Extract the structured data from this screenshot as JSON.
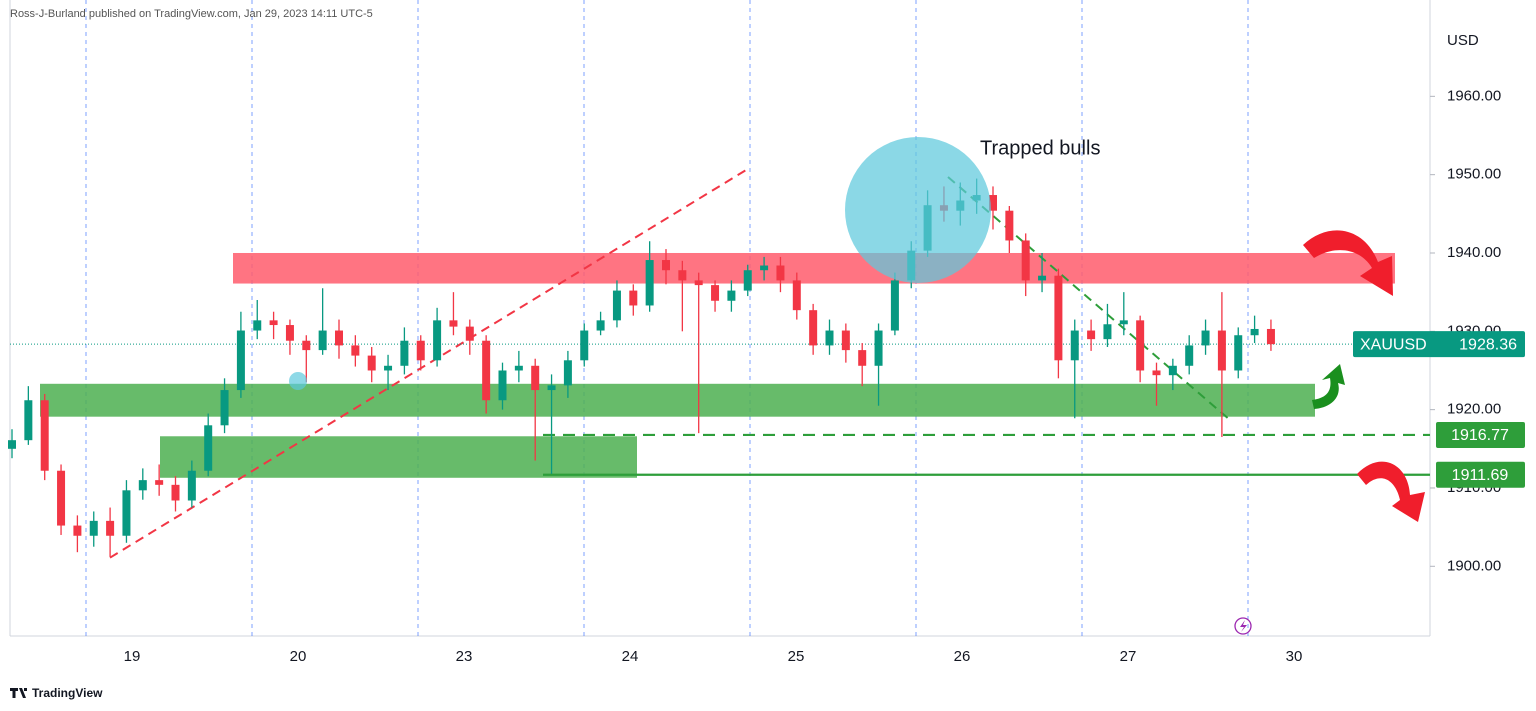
{
  "chart_data": {
    "type": "candlestick",
    "header": "Ross-J-Burland published on TradingView.com, Jan 29, 2023 14:11 UTC-5",
    "footer": "TradingView",
    "currency": "USD",
    "symbol": "XAUUSD",
    "last_price": 1928.36,
    "annotation": "Trapped bulls",
    "up_color": "#089981",
    "down_color": "#f23645",
    "ylim": [
      1891.1,
      1972.3
    ],
    "yticks": [
      {
        "value": 1900,
        "label": "1900.00"
      },
      {
        "value": 1910,
        "label": "1910.00"
      },
      {
        "value": 1920,
        "label": "1920.00"
      },
      {
        "value": 1930,
        "label": "1930.00"
      },
      {
        "value": 1940,
        "label": "1940.00"
      },
      {
        "value": 1950,
        "label": "1950.00"
      },
      {
        "value": 1960,
        "label": "1960.00"
      }
    ],
    "xticks": [
      "19",
      "20",
      "23",
      "24",
      "25",
      "26",
      "27",
      "30"
    ],
    "open": [
      1915.0,
      1916.1,
      1921.2,
      1912.2,
      1905.2,
      1903.9,
      1905.8,
      1903.9,
      1909.7,
      1911.0,
      1910.4,
      1908.4,
      1912.2,
      1918.0,
      1922.5,
      1930.1,
      1931.4,
      1930.8,
      1928.8,
      1927.6,
      1930.1,
      1928.2,
      1926.9,
      1925.0,
      1925.6,
      1928.8,
      1926.3,
      1931.4,
      1930.6,
      1928.8,
      1921.2,
      1925.0,
      1925.6,
      1922.5,
      1923.1,
      1926.3,
      1930.1,
      1931.4,
      1935.2,
      1933.3,
      1939.1,
      1937.8,
      1936.5,
      1935.9,
      1933.9,
      1935.2,
      1937.8,
      1938.4,
      1936.5,
      1932.7,
      1928.2,
      1930.1,
      1927.6,
      1925.6,
      1930.1,
      1936.5,
      1940.3,
      1946.1,
      1945.4,
      1946.7,
      1947.4,
      1945.4,
      1941.6,
      1936.5,
      1937.1,
      1926.3,
      1930.1,
      1929.0,
      1930.9,
      1931.4,
      1925.0,
      1924.4,
      1925.6,
      1928.2,
      1930.1,
      1925.0,
      1929.5,
      1930.3
    ],
    "high": [
      1917.5,
      1923.0,
      1922.0,
      1913.0,
      1906.5,
      1907.0,
      1907.5,
      1911.0,
      1912.5,
      1913.0,
      1911.5,
      1913.5,
      1919.5,
      1924.0,
      1932.5,
      1934.0,
      1932.5,
      1931.5,
      1929.5,
      1935.5,
      1931.5,
      1929.5,
      1928.0,
      1927.0,
      1930.5,
      1929.5,
      1933.0,
      1935.0,
      1931.5,
      1929.5,
      1926.0,
      1927.5,
      1926.5,
      1924.5,
      1927.5,
      1931.0,
      1932.5,
      1936.5,
      1936.0,
      1941.5,
      1940.5,
      1939.0,
      1937.5,
      1936.5,
      1936.5,
      1938.5,
      1939.5,
      1939.5,
      1937.5,
      1933.5,
      1931.5,
      1931.0,
      1928.5,
      1931.0,
      1937.5,
      1941.5,
      1948.0,
      1948.5,
      1949.0,
      1949.5,
      1948.5,
      1946.0,
      1942.5,
      1940.0,
      1938.0,
      1931.5,
      1931.5,
      1933.5,
      1935.0,
      1932.0,
      1926.0,
      1926.5,
      1929.5,
      1931.5,
      1935.0,
      1930.5,
      1932.0,
      1931.5
    ],
    "low": [
      1913.8,
      1915.5,
      1911.0,
      1904.0,
      1901.8,
      1902.5,
      1901.2,
      1903.0,
      1908.5,
      1909.0,
      1907.0,
      1907.5,
      1911.5,
      1917.0,
      1921.5,
      1929.0,
      1929.0,
      1927.0,
      1923.5,
      1927.0,
      1926.5,
      1925.5,
      1923.5,
      1922.5,
      1924.5,
      1925.0,
      1925.5,
      1929.5,
      1927.0,
      1919.5,
      1920.0,
      1923.5,
      1913.5,
      1911.8,
      1921.5,
      1925.5,
      1929.5,
      1930.5,
      1932.0,
      1932.5,
      1936.0,
      1930.0,
      1917.0,
      1932.5,
      1932.5,
      1934.5,
      1936.5,
      1935.0,
      1931.5,
      1927.0,
      1927.0,
      1926.0,
      1923.0,
      1920.5,
      1929.5,
      1935.5,
      1939.5,
      1944.0,
      1943.5,
      1945.0,
      1943.0,
      1940.0,
      1934.5,
      1935.0,
      1924.0,
      1918.9,
      1927.5,
      1928.0,
      1929.5,
      1923.5,
      1920.5,
      1922.5,
      1924.5,
      1927.0,
      1916.5,
      1924.0,
      1928.5,
      1927.5
    ],
    "close": [
      1916.1,
      1921.2,
      1912.2,
      1905.2,
      1903.9,
      1905.8,
      1903.9,
      1909.7,
      1911.0,
      1910.4,
      1908.4,
      1912.2,
      1918.0,
      1922.5,
      1930.1,
      1931.4,
      1930.8,
      1928.8,
      1927.6,
      1930.1,
      1928.2,
      1926.9,
      1925.0,
      1925.6,
      1928.8,
      1926.3,
      1931.4,
      1930.6,
      1928.8,
      1921.2,
      1925.0,
      1925.6,
      1922.5,
      1923.1,
      1926.3,
      1930.1,
      1931.4,
      1935.2,
      1933.3,
      1939.1,
      1937.8,
      1936.5,
      1935.9,
      1933.9,
      1935.2,
      1937.8,
      1938.4,
      1936.5,
      1932.7,
      1928.2,
      1930.1,
      1927.6,
      1925.6,
      1930.1,
      1936.5,
      1940.3,
      1946.1,
      1945.4,
      1946.7,
      1947.4,
      1945.4,
      1941.6,
      1936.5,
      1937.1,
      1926.3,
      1930.1,
      1929.0,
      1930.9,
      1931.4,
      1925.0,
      1924.4,
      1925.6,
      1928.2,
      1930.1,
      1925.0,
      1929.5,
      1930.3,
      1928.36
    ],
    "zones": [
      {
        "low": 1936.1,
        "high": 1940.0,
        "color": "#ff5c6c"
      },
      {
        "low": 1919.1,
        "high": 1923.3,
        "color": "#4caf50"
      },
      {
        "low": 1911.3,
        "high": 1916.6,
        "color": "#4caf50"
      }
    ],
    "levels": [
      {
        "value": 1916.77,
        "style": "dashed",
        "color": "#2e9e3a"
      },
      {
        "value": 1911.69,
        "style": "solid",
        "color": "#2e9e3a"
      }
    ],
    "trendlines": [
      {
        "from": 1901.1,
        "to": 1950.9,
        "color": "#f23645"
      },
      {
        "from": 1949.7,
        "to": 1918.9,
        "color": "#2e9e3a"
      }
    ]
  }
}
